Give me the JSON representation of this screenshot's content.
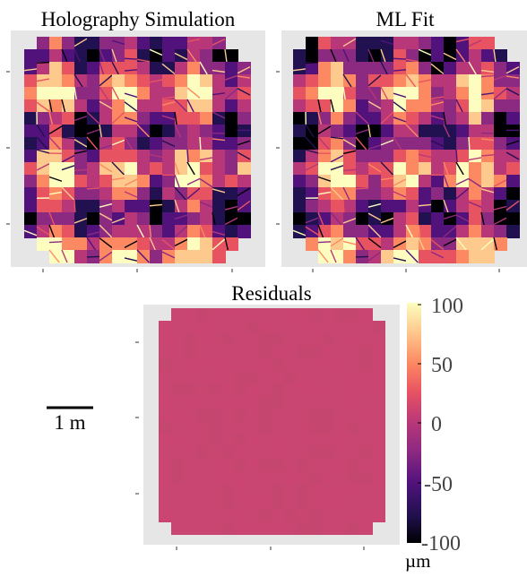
{
  "chart_data": [
    {
      "type": "heatmap",
      "title": "Holography Simulation",
      "colormap": "magma",
      "value_range": [
        -100,
        100
      ],
      "pattern": "segmented mirror surface error, large structured panel-like variations"
    },
    {
      "type": "heatmap",
      "title": "ML Fit",
      "colormap": "magma",
      "value_range": [
        -100,
        100
      ],
      "pattern": "nearly identical to holography simulation"
    },
    {
      "type": "heatmap",
      "title": "Residuals",
      "colormap": "magma",
      "value_range": [
        -100,
        100
      ],
      "pattern": "almost uniform, residual values near 0",
      "fill_color": "#c84671"
    }
  ],
  "colorbar": {
    "ticks": [
      "100",
      "50",
      "0",
      "-50",
      "-100"
    ],
    "unit": "µm",
    "colors": [
      "#fcfdbf",
      "#fec98d",
      "#fc8961",
      "#e85362",
      "#b73779",
      "#8c2981",
      "#51127c",
      "#221150",
      "#000004"
    ]
  },
  "scale_bar": {
    "label": "1 m"
  },
  "colors": {
    "panel_bg": "#e6e6e6",
    "residual": "#c84671"
  }
}
